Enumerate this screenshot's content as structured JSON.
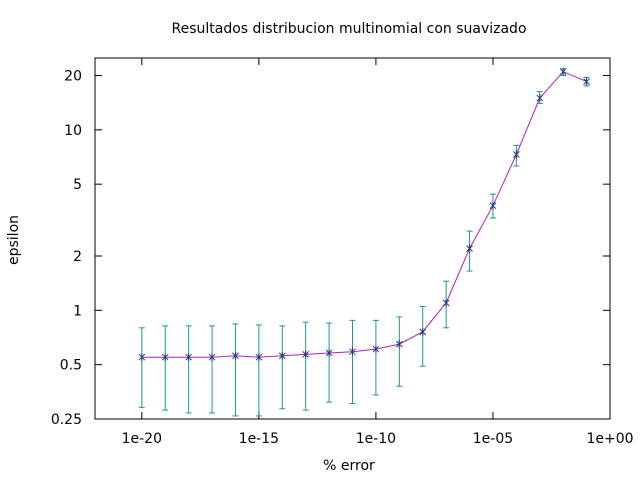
{
  "chart_data": {
    "type": "line",
    "title": "Resultados distribucion multinomial con suavizado",
    "xlabel": "% error",
    "ylabel": "epsilon",
    "x_scale": "log",
    "y_scale": "log",
    "xlim": [
      1e-22,
      1.0
    ],
    "ylim": [
      0.25,
      25
    ],
    "x_ticks": [
      {
        "value": 1e-20,
        "label": "1e-20"
      },
      {
        "value": 1e-15,
        "label": "1e-15"
      },
      {
        "value": 1e-10,
        "label": "1e-10"
      },
      {
        "value": 1e-05,
        "label": "1e-05"
      },
      {
        "value": 1.0,
        "label": "1e+00"
      }
    ],
    "y_ticks": [
      {
        "value": 0.25,
        "label": "0.25"
      },
      {
        "value": 0.5,
        "label": "0.5"
      },
      {
        "value": 1,
        "label": "1"
      },
      {
        "value": 2,
        "label": "2"
      },
      {
        "value": 5,
        "label": "5"
      },
      {
        "value": 10,
        "label": "10"
      },
      {
        "value": 20,
        "label": "20"
      }
    ],
    "colors": {
      "line": "#b41ebe",
      "errorbars": "#1a9a8a",
      "points": "#1a3f7a"
    },
    "series": [
      {
        "x": [
          1e-20,
          1e-19,
          1e-18,
          1e-17,
          1e-16,
          1e-15,
          1e-14,
          1e-13,
          1e-12,
          1e-11,
          1e-10,
          1e-09,
          1e-08,
          1e-07,
          1e-06,
          1e-05,
          0.0001,
          0.001,
          0.01,
          0.1
        ],
        "y": [
          0.55,
          0.55,
          0.55,
          0.55,
          0.56,
          0.55,
          0.56,
          0.57,
          0.58,
          0.59,
          0.61,
          0.65,
          0.76,
          1.1,
          2.2,
          3.8,
          7.3,
          15.0,
          21.0,
          18.5
        ],
        "yerr_low": [
          0.29,
          0.28,
          0.27,
          0.27,
          0.26,
          0.26,
          0.285,
          0.28,
          0.31,
          0.305,
          0.34,
          0.38,
          0.49,
          0.8,
          1.65,
          3.25,
          6.3,
          14.0,
          20.0,
          17.5
        ],
        "yerr_high": [
          0.8,
          0.82,
          0.82,
          0.82,
          0.84,
          0.83,
          0.82,
          0.86,
          0.85,
          0.88,
          0.88,
          0.92,
          1.05,
          1.45,
          2.75,
          4.4,
          8.2,
          16.3,
          21.8,
          19.5
        ]
      }
    ]
  }
}
